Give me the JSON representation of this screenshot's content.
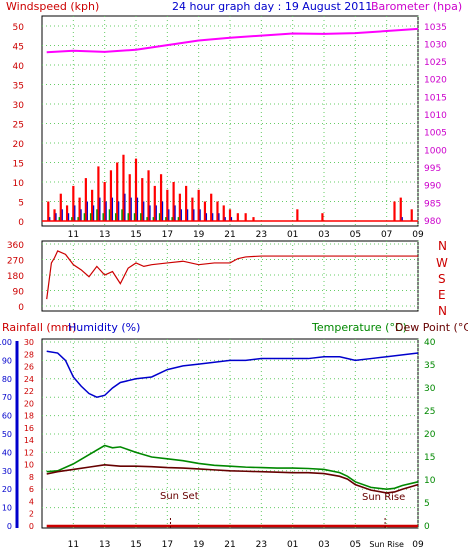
{
  "colors": {
    "wind": "#ff0000",
    "gust": "#0000cc",
    "windavg": "#009900",
    "barometer": "#ff00ff",
    "direction": "#cc0000",
    "rainfall": "#cc0000",
    "humidity": "#0000cc",
    "temperature": "#008800",
    "dewpoint": "#660000",
    "axis_left": "#cc0000",
    "axis_right": "#cc00cc",
    "grid": "#66cc66",
    "title": "#0000cc"
  },
  "top_panel": {
    "title": "24 hour graph day : 19 August 2011",
    "left_label": "Windspeed (kph)",
    "right_label": "Barometer (hpa)"
  },
  "mid_panel": {
    "compass": [
      "N",
      "W",
      "S",
      "E",
      "N"
    ]
  },
  "bottom_panel": {
    "rain_label": "Rainfall (mm)",
    "humidity_label": "Humidity (%)",
    "temp_label": "Temperature (°C)",
    "dew_label": "Dew Point (°C)",
    "sunset_label": "Sun Set",
    "sunrise_label": "Sun Rise"
  },
  "chart_data": [
    {
      "type": "line",
      "title": "24 hour graph day : 19 August 2011",
      "x_ticks": [
        "11",
        "13",
        "15",
        "17",
        "19",
        "21",
        "23",
        "01",
        "03",
        "05",
        "07",
        "09"
      ],
      "x_range": [
        9,
        33
      ],
      "y_left": {
        "label": "Windspeed (kph)",
        "ticks": [
          0,
          5,
          10,
          15,
          20,
          25,
          30,
          35,
          40,
          45,
          50
        ],
        "range": [
          0,
          50
        ]
      },
      "y_right": {
        "label": "Barometer (hpa)",
        "ticks": [
          980,
          985,
          990,
          995,
          1000,
          1005,
          1010,
          1015,
          1020,
          1025,
          1030,
          1035
        ],
        "range": [
          980,
          1037.2
        ]
      },
      "grid": true,
      "series": [
        {
          "axis": "right",
          "x": [
            9.3,
            11,
            13,
            15,
            17,
            19,
            21,
            23,
            25,
            27,
            29,
            31,
            33
          ],
          "values": [
            1027.8,
            1028.2,
            1027.9,
            1028.5,
            1029.8,
            1031.1,
            1031.9,
            1032.5,
            1033.1,
            1033.0,
            1033.2,
            1033.8,
            1034.4
          ]
        }
      ],
      "wind_bars": [
        {
          "x": 9.4,
          "gust": 5,
          "avg": 1,
          "calm": 0
        },
        {
          "x": 9.8,
          "gust": 3,
          "avg": 2,
          "calm": 0
        },
        {
          "x": 10.2,
          "gust": 7,
          "avg": 3,
          "calm": 1
        },
        {
          "x": 10.6,
          "gust": 4,
          "avg": 2,
          "calm": 0
        },
        {
          "x": 11.0,
          "gust": 9,
          "avg": 4,
          "calm": 1
        },
        {
          "x": 11.4,
          "gust": 6,
          "avg": 3,
          "calm": 1
        },
        {
          "x": 11.8,
          "gust": 11,
          "avg": 5,
          "calm": 2
        },
        {
          "x": 12.2,
          "gust": 8,
          "avg": 4,
          "calm": 2
        },
        {
          "x": 12.6,
          "gust": 14,
          "avg": 6,
          "calm": 3
        },
        {
          "x": 13.0,
          "gust": 10,
          "avg": 5,
          "calm": 2
        },
        {
          "x": 13.4,
          "gust": 13,
          "avg": 6,
          "calm": 3
        },
        {
          "x": 13.8,
          "gust": 15,
          "avg": 5,
          "calm": 2
        },
        {
          "x": 14.2,
          "gust": 17,
          "avg": 7,
          "calm": 3
        },
        {
          "x": 14.6,
          "gust": 12,
          "avg": 6,
          "calm": 2
        },
        {
          "x": 15.0,
          "gust": 16,
          "avg": 6,
          "calm": 2
        },
        {
          "x": 15.4,
          "gust": 11,
          "avg": 5,
          "calm": 2
        },
        {
          "x": 15.8,
          "gust": 13,
          "avg": 4,
          "calm": 1
        },
        {
          "x": 16.2,
          "gust": 9,
          "avg": 4,
          "calm": 1
        },
        {
          "x": 16.6,
          "gust": 12,
          "avg": 5,
          "calm": 2
        },
        {
          "x": 17.0,
          "gust": 8,
          "avg": 3,
          "calm": 1
        },
        {
          "x": 17.4,
          "gust": 10,
          "avg": 4,
          "calm": 1
        },
        {
          "x": 17.8,
          "gust": 7,
          "avg": 3,
          "calm": 1
        },
        {
          "x": 18.2,
          "gust": 9,
          "avg": 3,
          "calm": 0
        },
        {
          "x": 18.6,
          "gust": 6,
          "avg": 3,
          "calm": 0
        },
        {
          "x": 19.0,
          "gust": 8,
          "avg": 3,
          "calm": 0
        },
        {
          "x": 19.4,
          "gust": 5,
          "avg": 2,
          "calm": 0
        },
        {
          "x": 19.8,
          "gust": 7,
          "avg": 2,
          "calm": 0
        },
        {
          "x": 20.2,
          "gust": 5,
          "avg": 2,
          "calm": 0
        },
        {
          "x": 20.6,
          "gust": 4,
          "avg": 1,
          "calm": 0
        },
        {
          "x": 21.0,
          "gust": 3,
          "avg": 1,
          "calm": 0
        },
        {
          "x": 21.5,
          "gust": 2,
          "avg": 0,
          "calm": 0
        },
        {
          "x": 22.0,
          "gust": 2,
          "avg": 0,
          "calm": 0
        },
        {
          "x": 22.5,
          "gust": 1,
          "avg": 0,
          "calm": 0
        },
        {
          "x": 25.3,
          "gust": 3,
          "avg": 0,
          "calm": 0
        },
        {
          "x": 26.9,
          "gust": 2,
          "avg": 0,
          "calm": 0
        },
        {
          "x": 31.5,
          "gust": 5,
          "avg": 0,
          "calm": 0
        },
        {
          "x": 31.9,
          "gust": 6,
          "avg": 1,
          "calm": 0
        },
        {
          "x": 32.6,
          "gust": 3,
          "avg": 0,
          "calm": 0
        }
      ]
    },
    {
      "type": "line",
      "y_left": {
        "ticks": [
          0,
          90,
          180,
          270,
          360
        ],
        "range": [
          0,
          360
        ]
      },
      "compass": [
        "N",
        "W",
        "S",
        "E",
        "N"
      ],
      "x_range": [
        9,
        33
      ],
      "grid": true,
      "series": [
        {
          "name": "Wind direction",
          "x": [
            9.3,
            9.6,
            9.8,
            10.0,
            10.5,
            11.0,
            11.5,
            12.0,
            12.5,
            13.0,
            13.5,
            14.0,
            14.5,
            15.0,
            15.5,
            16.0,
            17.0,
            18.0,
            19.0,
            20.0,
            21.0,
            21.5,
            22.0,
            23.0,
            33.0
          ],
          "values": [
            40,
            250,
            280,
            320,
            300,
            240,
            210,
            170,
            230,
            180,
            200,
            130,
            220,
            250,
            230,
            240,
            250,
            260,
            240,
            250,
            250,
            275,
            285,
            290,
            290
          ]
        }
      ]
    },
    {
      "type": "line",
      "x_ticks": [
        "11",
        "13",
        "15",
        "17",
        "19",
        "21",
        "23",
        "01",
        "03",
        "05",
        "Sun Rise",
        "09"
      ],
      "x_range": [
        9,
        33
      ],
      "y_left_rain": {
        "label": "Rainfall (mm)",
        "ticks": [
          0,
          2,
          4,
          6,
          8,
          10,
          12,
          14,
          16,
          18,
          20,
          22,
          24,
          26,
          28,
          30
        ],
        "range": [
          0,
          30
        ]
      },
      "y_left_hum": {
        "label": "Humidity (%)",
        "ticks": [
          0,
          10,
          20,
          30,
          40,
          50,
          60,
          70,
          80,
          90,
          100
        ],
        "range": [
          0,
          100
        ]
      },
      "y_right": {
        "label": "Temperature (°C)",
        "ticks": [
          0,
          5,
          10,
          15,
          20,
          25,
          30,
          35,
          40
        ],
        "range": [
          0,
          40
        ]
      },
      "grid": true,
      "annotations": [
        "Sun Set",
        "Sun Rise"
      ],
      "series": [
        {
          "name": "Humidity (%)",
          "axis": "hum",
          "x": [
            9.3,
            10.0,
            10.5,
            11.0,
            11.5,
            12.0,
            12.5,
            13.0,
            13.5,
            14.0,
            15.0,
            16.0,
            17.0,
            18.0,
            19.0,
            20.0,
            21.0,
            22.0,
            23.0,
            24.0,
            25.0,
            26.0,
            27.0,
            28.0,
            29.0,
            30.0,
            31.0,
            32.0,
            33.0
          ],
          "values": [
            95,
            94,
            90,
            81,
            76,
            72,
            70,
            71,
            75,
            78,
            80,
            81,
            85,
            87,
            88,
            89,
            90,
            90,
            91,
            91,
            91,
            91,
            92,
            92,
            90,
            91,
            92,
            93,
            94
          ]
        },
        {
          "name": "Temperature (°C)",
          "axis": "temp",
          "x": [
            9.3,
            10.0,
            11.0,
            12.0,
            12.5,
            13.0,
            13.5,
            14.0,
            15.0,
            16.0,
            17.0,
            18.0,
            19.0,
            20.0,
            21.0,
            22.0,
            23.0,
            24.0,
            25.0,
            26.0,
            27.0,
            28.0,
            28.5,
            29.0,
            30.0,
            31.0,
            31.5,
            32.0,
            33.0
          ],
          "values": [
            11.8,
            12.0,
            13.5,
            15.5,
            16.5,
            17.5,
            17.0,
            17.2,
            16.0,
            15.0,
            14.6,
            14.2,
            13.6,
            13.2,
            13.0,
            12.8,
            12.7,
            12.6,
            12.6,
            12.5,
            12.3,
            11.6,
            10.8,
            9.6,
            8.4,
            8.0,
            8.2,
            8.8,
            9.6
          ]
        },
        {
          "name": "Dew Point (°C)",
          "axis": "temp",
          "x": [
            9.3,
            10.0,
            11.0,
            12.0,
            13.0,
            14.0,
            15.0,
            16.0,
            17.0,
            18.0,
            19.0,
            20.0,
            21.0,
            22.0,
            23.0,
            24.0,
            25.0,
            26.0,
            27.0,
            28.0,
            28.5,
            29.0,
            30.0,
            31.0,
            31.5,
            32.0,
            33.0
          ],
          "values": [
            11.3,
            11.8,
            12.3,
            12.8,
            13.3,
            13.0,
            13.0,
            12.9,
            12.7,
            12.6,
            12.4,
            12.2,
            12.0,
            11.9,
            11.8,
            11.7,
            11.6,
            11.6,
            11.4,
            10.8,
            10.2,
            9.0,
            7.8,
            7.2,
            7.4,
            8.0,
            9.0
          ]
        },
        {
          "name": "Rainfall (mm)",
          "axis": "rain",
          "x": [
            9.3,
            33.0
          ],
          "values": [
            0,
            0
          ]
        }
      ]
    }
  ]
}
